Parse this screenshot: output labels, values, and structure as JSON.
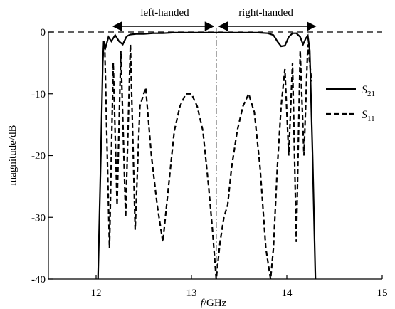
{
  "chart_data": {
    "type": "line",
    "xlabel_italic": "f",
    "xlabel_rest": "/GHz",
    "ylabel": "magnitude/dB",
    "xlim": [
      11.5,
      15
    ],
    "ylim": [
      -40,
      0
    ],
    "xticks": [
      "12",
      "13",
      "14",
      "15"
    ],
    "yticks": [
      "0",
      "-10",
      "-20",
      "-30",
      "-40"
    ],
    "annotations": {
      "left": "left-handed",
      "right": "right-handed",
      "divider_x": 13.26,
      "left_span": [
        12.18,
        13.26
      ],
      "right_span": [
        13.26,
        14.3
      ]
    },
    "legend": [
      {
        "name_main": "S",
        "name_sub": "21",
        "style": "solid"
      },
      {
        "name_main": "S",
        "name_sub": "11",
        "style": "dashed"
      }
    ],
    "series": [
      {
        "key": "S21",
        "style": "solid",
        "x": [
          12.02,
          12.05,
          12.07,
          12.08,
          12.1,
          12.13,
          12.16,
          12.2,
          12.24,
          12.28,
          12.32,
          12.36,
          12.42,
          12.5,
          12.6,
          12.7,
          12.8,
          12.9,
          13.0,
          13.1,
          13.2,
          13.3,
          13.4,
          13.5,
          13.6,
          13.7,
          13.8,
          13.86,
          13.9,
          13.94,
          13.98,
          14.02,
          14.06,
          14.1,
          14.14,
          14.17,
          14.2,
          14.22,
          14.24,
          14.27,
          14.3
        ],
        "y": [
          -40,
          -20,
          -5,
          -1.5,
          -2.5,
          -0.8,
          -1.5,
          -0.5,
          -1.5,
          -2.0,
          -0.7,
          -0.4,
          -0.3,
          -0.3,
          -0.2,
          -0.2,
          -0.1,
          -0.1,
          -0.1,
          -0.1,
          -0.1,
          -0.1,
          -0.1,
          -0.1,
          -0.1,
          -0.1,
          -0.2,
          -0.5,
          -1.5,
          -2.3,
          -2.2,
          -0.8,
          -0.2,
          -0.2,
          -0.8,
          -2.0,
          -1.0,
          -0.6,
          -3.0,
          -20,
          -40
        ]
      },
      {
        "key": "S11",
        "style": "dashed",
        "x": [
          12.09,
          12.11,
          12.14,
          12.18,
          12.22,
          12.26,
          12.31,
          12.36,
          12.41,
          12.46,
          12.52,
          12.58,
          12.64,
          12.7,
          12.76,
          12.82,
          12.88,
          12.94,
          13.0,
          13.06,
          13.12,
          13.18,
          13.22,
          13.26,
          13.3,
          13.34,
          13.38,
          13.42,
          13.48,
          13.54,
          13.6,
          13.66,
          13.72,
          13.78,
          13.83,
          13.86,
          13.9,
          13.94,
          13.98,
          14.02,
          14.06,
          14.1,
          14.14,
          14.18,
          14.22,
          14.26
        ],
        "y": [
          -2,
          -15,
          -35,
          -5,
          -28,
          -3,
          -30,
          -2,
          -32,
          -12,
          -9,
          -20,
          -28,
          -34,
          -25,
          -16,
          -12,
          -10,
          -10,
          -12,
          -16,
          -25,
          -32,
          -40,
          -34,
          -30,
          -28,
          -22,
          -16,
          -12,
          -10,
          -13,
          -22,
          -35,
          -40,
          -35,
          -22,
          -12,
          -6,
          -20,
          -5,
          -34,
          -3,
          -20,
          -2,
          -8
        ]
      }
    ]
  }
}
